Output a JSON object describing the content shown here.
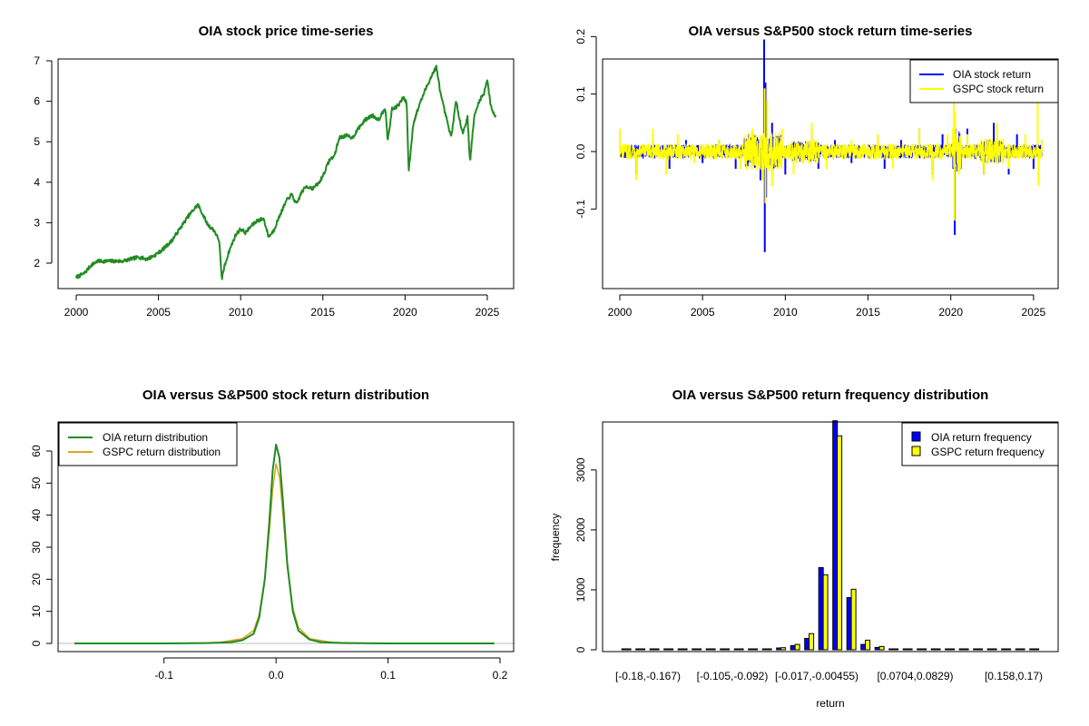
{
  "chart_data": [
    {
      "id": "p1",
      "type": "line",
      "title": "OIA stock price time-series",
      "xlabel": "",
      "ylabel": "",
      "xlim": [
        2000,
        2025.6
      ],
      "ylim": [
        1.4,
        7.0
      ],
      "x_ticks": [
        2000,
        2005,
        2010,
        2015,
        2020,
        2025
      ],
      "x_tick_labels": [
        "2000",
        "2005",
        "2010",
        "2015",
        "2020",
        "2025"
      ],
      "y_ticks": [
        2,
        3,
        4,
        5,
        6,
        7
      ],
      "y_tick_labels": [
        "2",
        "3",
        "4",
        "5",
        "6",
        "7"
      ],
      "grid": false,
      "series": [
        {
          "color": "#228B22",
          "x": [
            2000.0,
            2000.5,
            2000.9,
            2001.3,
            2001.8,
            2002.3,
            2002.8,
            2003.3,
            2003.8,
            2004.3,
            2004.8,
            2005.3,
            2005.8,
            2006.3,
            2006.8,
            2007.1,
            2007.4,
            2007.7,
            2008.0,
            2008.4,
            2008.7,
            2008.85,
            2009.0,
            2009.3,
            2009.7,
            2010.0,
            2010.3,
            2010.6,
            2011.0,
            2011.4,
            2011.7,
            2012.0,
            2012.4,
            2012.8,
            2013.1,
            2013.4,
            2013.7,
            2014.0,
            2014.4,
            2014.8,
            2015.1,
            2015.4,
            2015.7,
            2016.0,
            2016.4,
            2016.8,
            2017.2,
            2017.6,
            2018.0,
            2018.4,
            2018.8,
            2018.95,
            2019.2,
            2019.6,
            2019.9,
            2020.1,
            2020.22,
            2020.5,
            2020.9,
            2021.3,
            2021.7,
            2021.9,
            2022.2,
            2022.5,
            2022.8,
            2023.1,
            2023.5,
            2023.8,
            2023.95,
            2024.2,
            2024.5,
            2024.8,
            2025.0,
            2025.2,
            2025.5
          ],
          "values": [
            1.65,
            1.75,
            1.95,
            2.05,
            2.05,
            2.05,
            2.05,
            2.1,
            2.15,
            2.1,
            2.2,
            2.35,
            2.55,
            2.85,
            3.15,
            3.3,
            3.45,
            3.2,
            2.95,
            2.8,
            2.55,
            1.6,
            1.9,
            2.3,
            2.7,
            2.85,
            2.75,
            2.9,
            3.05,
            3.1,
            2.65,
            2.8,
            3.2,
            3.55,
            3.7,
            3.45,
            3.75,
            3.9,
            3.85,
            4.0,
            4.25,
            4.55,
            4.65,
            5.1,
            5.15,
            5.1,
            5.35,
            5.55,
            5.65,
            5.55,
            5.85,
            5.0,
            5.8,
            5.9,
            6.1,
            5.95,
            4.25,
            5.45,
            5.95,
            6.35,
            6.7,
            6.85,
            6.1,
            5.6,
            5.1,
            6.0,
            5.2,
            5.6,
            4.5,
            5.6,
            6.0,
            6.2,
            6.55,
            5.9,
            5.6
          ]
        }
      ]
    },
    {
      "id": "p2",
      "type": "line",
      "title": "OIA versus S&P500 stock return time-series",
      "xlabel": "",
      "ylabel": "",
      "xlim": [
        2000,
        2025.6
      ],
      "ylim": [
        -0.19,
        0.21
      ],
      "x_ticks": [
        2000,
        2005,
        2010,
        2015,
        2020,
        2025
      ],
      "x_tick_labels": [
        "2000",
        "2005",
        "2010",
        "2015",
        "2020",
        "2025"
      ],
      "y_ticks": [
        -0.1,
        0.0,
        0.1,
        0.2
      ],
      "y_tick_labels": [
        "-0.1",
        "0.0",
        "0.1",
        "0.2"
      ],
      "grid": false,
      "legend": {
        "position": "top-right",
        "items": [
          {
            "label": "OIA stock return",
            "color": "#0000FF"
          },
          {
            "label": "GSPC stock return",
            "color": "#FFFF00"
          }
        ]
      },
      "series": [
        {
          "name": "OIA stock return",
          "color": "#0000FF",
          "x": [
            2000.0,
            2001.0,
            2002.0,
            2003.0,
            2004.0,
            2005.0,
            2006.0,
            2007.0,
            2007.8,
            2008.5,
            2008.72,
            2008.76,
            2008.8,
            2008.84,
            2009.2,
            2010.0,
            2011.6,
            2012.0,
            2013.0,
            2014.0,
            2015.6,
            2016.0,
            2017.0,
            2018.1,
            2018.9,
            2019.5,
            2020.15,
            2020.2,
            2020.24,
            2020.28,
            2020.6,
            2021.0,
            2022.0,
            2022.6,
            2023.5,
            2024.0,
            2025.0,
            2025.5
          ],
          "values": [
            0.03,
            -0.04,
            0.03,
            -0.03,
            0.02,
            -0.02,
            0.02,
            -0.03,
            0.03,
            -0.05,
            0.195,
            -0.175,
            0.12,
            -0.08,
            0.05,
            -0.04,
            0.04,
            -0.03,
            0.02,
            -0.02,
            0.03,
            -0.03,
            0.02,
            0.04,
            -0.04,
            0.03,
            -0.03,
            0.07,
            -0.145,
            0.04,
            -0.03,
            0.04,
            -0.04,
            0.05,
            -0.04,
            0.03,
            -0.03,
            0.02
          ]
        },
        {
          "name": "GSPC stock return",
          "color": "#FFFF00",
          "x": [
            2000.0,
            2001.0,
            2002.0,
            2002.8,
            2003.5,
            2004.5,
            2006.0,
            2007.3,
            2008.0,
            2008.6,
            2008.75,
            2008.8,
            2008.9,
            2009.2,
            2009.8,
            2010.5,
            2011.6,
            2012.5,
            2014.0,
            2015.6,
            2016.5,
            2018.1,
            2018.9,
            2019.8,
            2020.18,
            2020.22,
            2020.26,
            2020.5,
            2021.0,
            2022.0,
            2022.8,
            2023.5,
            2024.5,
            2025.25,
            2025.3,
            2025.5
          ],
          "values": [
            0.04,
            -0.05,
            0.04,
            -0.04,
            0.03,
            -0.02,
            0.02,
            -0.03,
            0.04,
            -0.05,
            0.11,
            -0.09,
            0.09,
            -0.06,
            0.04,
            -0.04,
            0.05,
            -0.03,
            0.02,
            0.03,
            -0.03,
            0.04,
            -0.05,
            0.03,
            0.09,
            -0.12,
            0.07,
            -0.04,
            0.03,
            -0.04,
            0.05,
            -0.03,
            0.03,
            0.09,
            -0.06,
            0.02
          ]
        }
      ]
    },
    {
      "id": "p3",
      "type": "line",
      "title": "OIA versus S&P500 stock return distribution",
      "xlabel": "",
      "ylabel": "",
      "xlim": [
        -0.185,
        0.205
      ],
      "ylim": [
        -1.5,
        65
      ],
      "x_ticks": [
        -0.1,
        0.0,
        0.1,
        0.2
      ],
      "x_tick_labels": [
        "-0.1",
        "0.0",
        "0.1",
        "0.2"
      ],
      "y_ticks": [
        0,
        10,
        20,
        30,
        40,
        50,
        60
      ],
      "y_tick_labels": [
        "0",
        "10",
        "20",
        "30",
        "40",
        "50",
        "60"
      ],
      "grid": false,
      "legend": {
        "position": "top-left",
        "items": [
          {
            "label": "OIA return distribution",
            "color": "#228B22"
          },
          {
            "label": "GSPC return distribution",
            "color": "#DAA520"
          }
        ]
      },
      "series": [
        {
          "name": "OIA return distribution",
          "color": "#228B22",
          "x": [
            -0.18,
            -0.1,
            -0.06,
            -0.04,
            -0.03,
            -0.02,
            -0.015,
            -0.01,
            -0.006,
            -0.003,
            0.0,
            0.003,
            0.006,
            0.01,
            0.015,
            0.02,
            0.03,
            0.04,
            0.06,
            0.1,
            0.195
          ],
          "values": [
            0,
            0,
            0.1,
            0.4,
            1.0,
            3.0,
            8.0,
            20.0,
            38.0,
            54.0,
            62.0,
            58.0,
            45.0,
            25.0,
            10.0,
            4.0,
            1.2,
            0.4,
            0.1,
            0,
            0
          ]
        },
        {
          "name": "GSPC return distribution",
          "color": "#DAA520",
          "x": [
            -0.13,
            -0.08,
            -0.05,
            -0.03,
            -0.02,
            -0.015,
            -0.01,
            -0.006,
            -0.003,
            0.0,
            0.003,
            0.006,
            0.01,
            0.015,
            0.02,
            0.03,
            0.05,
            0.08,
            0.11
          ],
          "values": [
            0,
            0.05,
            0.3,
            1.5,
            4.0,
            9.0,
            20.0,
            35.0,
            48.0,
            56.0,
            52.0,
            41.0,
            24.0,
            11.0,
            5.0,
            1.5,
            0.3,
            0.05,
            0
          ]
        }
      ]
    },
    {
      "id": "p4",
      "type": "bar",
      "title": "OIA versus S&P500 return frequency distribution",
      "xlabel": "return",
      "ylabel": "frequency",
      "ylim": [
        0,
        3800
      ],
      "y_ticks": [
        0,
        1000,
        2000,
        3000
      ],
      "y_tick_labels": [
        "0",
        "1000",
        "2000",
        "3000"
      ],
      "grid": false,
      "categories": [
        "b1",
        "b2",
        "b3",
        "b4",
        "b5",
        "b6",
        "b7",
        "b8",
        "b9",
        "b10",
        "b11",
        "b12",
        "b13",
        "b14",
        "b15",
        "b16",
        "b17",
        "b18",
        "b19",
        "b20",
        "b21",
        "b22",
        "b23",
        "b24",
        "b25",
        "b26",
        "b27",
        "b28",
        "b29",
        "b30"
      ],
      "category_labels": [
        {
          "index": 0,
          "text": "[-0.18,-0.167)"
        },
        {
          "index": 6,
          "text": "[-0.105,-0.092)"
        },
        {
          "index": 12,
          "text": "[-0.017,-0.00455)"
        },
        {
          "index": 19,
          "text": "[0.0704,0.0829)"
        },
        {
          "index": 26,
          "text": "[0.158,0.17)"
        }
      ],
      "legend": {
        "position": "top-right",
        "items": [
          {
            "label": "OIA return frequency",
            "color": "#0000FF"
          },
          {
            "label": "GSPC return frequency",
            "color": "#FFFF00"
          }
        ]
      },
      "series": [
        {
          "name": "OIA return frequency",
          "color": "#0000FF",
          "values": [
            1,
            0,
            1,
            0,
            1,
            2,
            1,
            3,
            5,
            8,
            14,
            30,
            70,
            190,
            1370,
            3820,
            870,
            90,
            40,
            12,
            6,
            3,
            2,
            1,
            1,
            0,
            1,
            0,
            0,
            1
          ]
        },
        {
          "name": "GSPC return frequency",
          "color": "#FFFF00",
          "values": [
            0,
            0,
            0,
            1,
            0,
            1,
            2,
            2,
            4,
            6,
            12,
            35,
            90,
            270,
            1250,
            3570,
            1010,
            160,
            55,
            15,
            7,
            3,
            1,
            1,
            0,
            0,
            0,
            0,
            1,
            0
          ]
        }
      ]
    }
  ]
}
